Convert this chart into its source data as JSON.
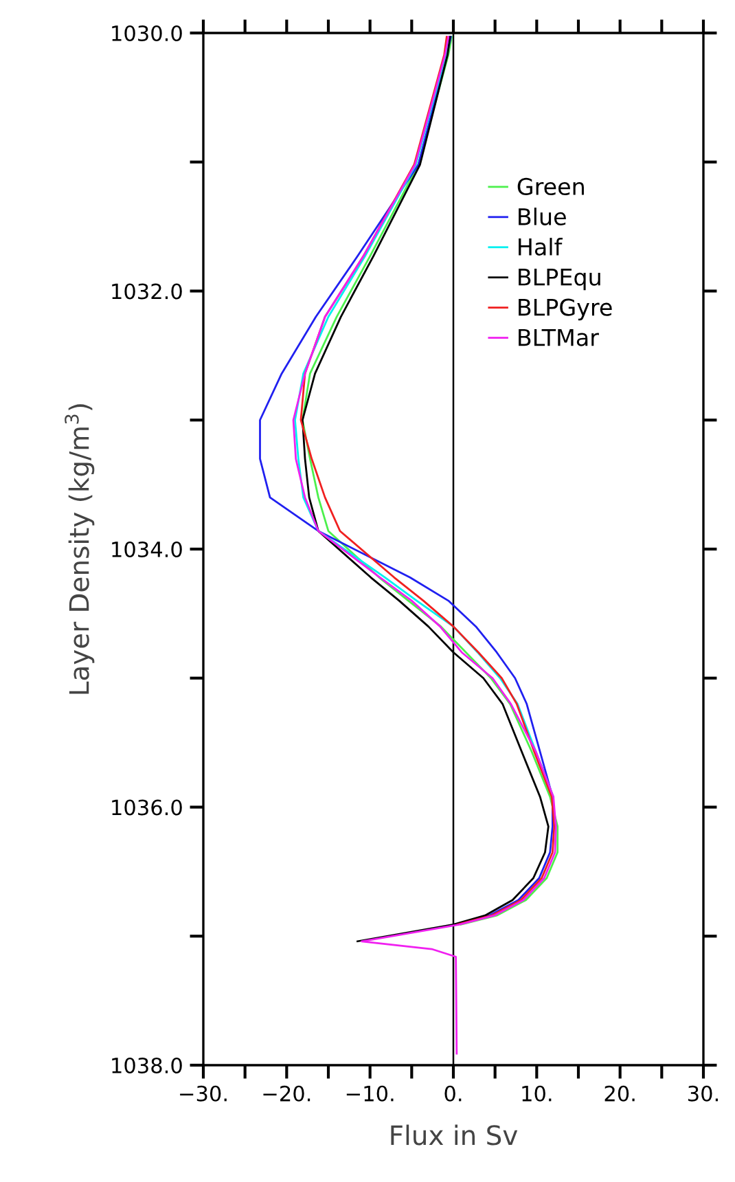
{
  "chart_data": {
    "type": "line",
    "xlabel": "Flux in Sv",
    "ylabel": "Layer Density (kg/m$^{3}$)",
    "xlim": [
      -30,
      30
    ],
    "ylim": [
      1038,
      1030
    ],
    "xticks": [
      {
        "value": -30,
        "label": "−30."
      },
      {
        "value": -25,
        "label": null
      },
      {
        "value": -20,
        "label": "−20."
      },
      {
        "value": -15,
        "label": null
      },
      {
        "value": -10,
        "label": "−10."
      },
      {
        "value": -5,
        "label": null
      },
      {
        "value": 0,
        "label": "0."
      },
      {
        "value": 5,
        "label": null
      },
      {
        "value": 10,
        "label": "10."
      },
      {
        "value": 15,
        "label": null
      },
      {
        "value": 20,
        "label": "20."
      },
      {
        "value": 25,
        "label": null
      },
      {
        "value": 30,
        "label": "30."
      }
    ],
    "yticks": [
      {
        "value": 1030,
        "label": "1030.0"
      },
      {
        "value": 1031,
        "label": null
      },
      {
        "value": 1032,
        "label": "1032.0"
      },
      {
        "value": 1033,
        "label": null
      },
      {
        "value": 1034,
        "label": "1034.0"
      },
      {
        "value": 1035,
        "label": null
      },
      {
        "value": 1036,
        "label": "1036.0"
      },
      {
        "value": 1037,
        "label": null
      },
      {
        "value": 1038,
        "label": "1038.0"
      }
    ],
    "ref_lines": [
      {
        "axis": "x",
        "value": 0,
        "label": null,
        "color": "#000000"
      }
    ],
    "legend": "top right",
    "grid": false,
    "marker": "none",
    "line_style": "solid",
    "series": [
      {
        "name": "Green",
        "color": "#4cf04c",
        "x": [
          -0.2,
          -0.6,
          -4.2,
          -10.0,
          -14.0,
          -17.2,
          -18.1,
          -17.2,
          -16.2,
          -15.0,
          -8.9,
          -5.4,
          -1.5,
          1.5,
          4.5,
          6.8,
          9.4,
          11.6,
          12.5,
          12.5,
          11.2,
          8.7,
          5.2,
          0.9
        ],
        "values": [
          1030.03,
          1030.17,
          1031.02,
          1031.73,
          1032.2,
          1032.64,
          1033.0,
          1033.3,
          1033.6,
          1033.86,
          1034.22,
          1034.4,
          1034.6,
          1034.8,
          1035.0,
          1035.2,
          1035.57,
          1035.92,
          1036.15,
          1036.35,
          1036.55,
          1036.72,
          1036.84,
          1036.91
        ]
      },
      {
        "name": "Blue",
        "color": "#2020f0",
        "x": [
          -0.3,
          -0.8,
          -4.2,
          -11.5,
          -16.5,
          -20.6,
          -23.2,
          -23.2,
          -22.0,
          -16.2,
          -5.2,
          -0.6,
          2.7,
          5.2,
          7.4,
          8.8,
          10.4,
          11.9,
          11.9,
          11.6,
          10.3,
          7.8,
          4.3,
          0.3
        ],
        "values": [
          1030.03,
          1030.17,
          1031.02,
          1031.73,
          1032.2,
          1032.64,
          1033.0,
          1033.3,
          1033.6,
          1033.86,
          1034.22,
          1034.4,
          1034.6,
          1034.8,
          1035.0,
          1035.2,
          1035.57,
          1035.92,
          1036.15,
          1036.35,
          1036.55,
          1036.72,
          1036.84,
          1036.91
        ]
      },
      {
        "name": "Half",
        "color": "#00f0f0",
        "x": [
          -0.5,
          -0.9,
          -4.5,
          -10.6,
          -15.0,
          -18.0,
          -19.0,
          -18.6,
          -18.0,
          -16.2,
          -8.2,
          -4.4,
          0.0,
          2.9,
          5.6,
          7.7,
          9.9,
          12.0
        ],
        "values": [
          1030.03,
          1030.17,
          1031.02,
          1031.73,
          1032.2,
          1032.64,
          1033.0,
          1033.3,
          1033.6,
          1033.86,
          1034.22,
          1034.4,
          1034.6,
          1034.8,
          1035.0,
          1035.2,
          1035.57,
          1035.92
        ]
      },
      {
        "name": "BLPEqu",
        "color": "#000000",
        "x": [
          -0.4,
          -0.7,
          -4.0,
          -9.6,
          -13.5,
          -16.6,
          -18.1,
          -17.8,
          -17.3,
          -16.2,
          -9.9,
          -6.5,
          -3.0,
          0.0,
          3.6,
          5.9,
          8.2,
          10.4,
          11.4,
          11.0,
          9.6,
          7.1,
          3.8,
          0.0,
          -11.5
        ],
        "values": [
          1030.03,
          1030.17,
          1031.02,
          1031.73,
          1032.2,
          1032.64,
          1033.0,
          1033.3,
          1033.6,
          1033.86,
          1034.22,
          1034.4,
          1034.6,
          1034.8,
          1035.0,
          1035.2,
          1035.57,
          1035.92,
          1036.15,
          1036.35,
          1036.55,
          1036.72,
          1036.84,
          1036.91,
          1037.04
        ]
      },
      {
        "name": "BLPGyre",
        "color": "#f02020",
        "x": [
          -0.8,
          -1.1,
          -4.7,
          -10.8,
          -15.4,
          -17.8,
          -18.3,
          -17.0,
          -15.4,
          -13.6,
          -7.1,
          -3.6,
          0.0,
          3.0,
          5.8,
          7.6,
          9.7,
          11.8,
          12.1,
          11.9,
          10.6,
          8.1,
          4.6,
          0.5
        ],
        "values": [
          1030.03,
          1030.17,
          1031.02,
          1031.73,
          1032.2,
          1032.64,
          1033.0,
          1033.3,
          1033.6,
          1033.86,
          1034.22,
          1034.4,
          1034.6,
          1034.8,
          1035.0,
          1035.2,
          1035.57,
          1035.92,
          1036.15,
          1036.35,
          1036.55,
          1036.72,
          1036.84,
          1036.91
        ]
      },
      {
        "name": "BLTMar",
        "color": "#f020f0",
        "x": [
          -0.6,
          -1.0,
          -4.6,
          -10.8,
          -15.4,
          -17.8,
          -19.2,
          -18.9,
          -17.8,
          -16.2,
          -8.8,
          -5.0,
          -1.6,
          1.0,
          4.7,
          6.9,
          9.9,
          12.0,
          12.3,
          12.2,
          10.9,
          8.4,
          4.9,
          0.7,
          -11.0,
          -2.6,
          0.3,
          0.4
        ],
        "values": [
          1030.03,
          1030.17,
          1031.02,
          1031.73,
          1032.2,
          1032.64,
          1033.0,
          1033.3,
          1033.6,
          1033.86,
          1034.22,
          1034.4,
          1034.6,
          1034.8,
          1035.0,
          1035.2,
          1035.57,
          1035.92,
          1036.15,
          1036.35,
          1036.55,
          1036.72,
          1036.84,
          1036.91,
          1037.04,
          1037.1,
          1037.16,
          1037.91
        ]
      }
    ]
  }
}
